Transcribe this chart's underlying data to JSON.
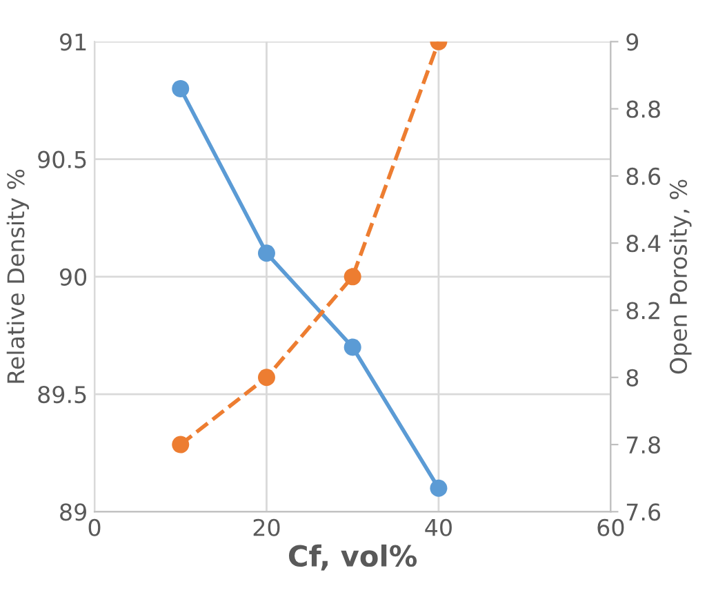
{
  "chart_data": {
    "type": "line",
    "xlabel": "Cf, vol%",
    "ylabel": "Relative Density %",
    "y2label": "Open Porosity, %",
    "x": [
      10,
      20,
      30,
      40
    ],
    "series": [
      {
        "color": "#5b9bd5",
        "values": [
          90.8,
          90.1,
          89.7,
          89.1
        ],
        "line_style": "solid"
      },
      {
        "color": "#ed7d31",
        "values": [
          7.8,
          8.0,
          8.3,
          9.0
        ],
        "axis": "y2",
        "line_style": "dashed"
      }
    ],
    "xlim": [
      0,
      60
    ],
    "xticks": [
      0,
      20,
      40,
      60
    ],
    "ylim": [
      89,
      91
    ],
    "yticks": [
      89,
      89.5,
      90,
      90.5,
      91
    ],
    "y2lim": [
      7.6,
      9
    ],
    "y2ticks": [
      7.6,
      7.8,
      8,
      8.2,
      8.4,
      8.6,
      8.8,
      9
    ],
    "grid": true,
    "marker": "circle"
  }
}
